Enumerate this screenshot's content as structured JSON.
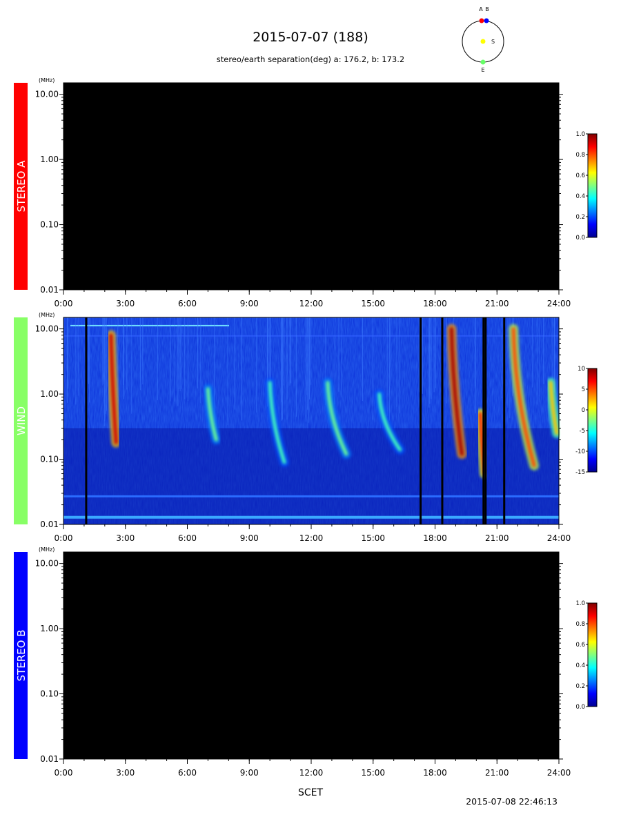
{
  "header": {
    "title": "2015-07-07 (188)",
    "subtitle": "stereo/earth separation(deg) a: 176.2, b: 173.2",
    "orbit_labels": {
      "a": "A",
      "b": "B",
      "s": "S",
      "e": "E"
    },
    "orbit_colors": {
      "a": "#ff0000",
      "b": "#0000ff",
      "s": "#ffff00",
      "e": "#66ff66"
    }
  },
  "footer": {
    "xlabel": "SCET",
    "timestamp": "2015-07-08 22:46:13"
  },
  "chart_data": [
    {
      "type": "heatmap",
      "name": "STEREO A",
      "label_color": "#ff0000",
      "has_data": false,
      "y_unit": "(MHz)",
      "y_scale": "log",
      "ylim": [
        0.01,
        15
      ],
      "yticks": [
        0.01,
        0.1,
        1.0,
        10.0
      ],
      "ytick_labels": [
        "0.01",
        "0.10",
        "1.00",
        "10.00"
      ],
      "xlim": [
        0,
        24
      ],
      "xtick_labels": [
        "0:00",
        "3:00",
        "6:00",
        "9:00",
        "12:00",
        "15:00",
        "18:00",
        "21:00",
        "24:00"
      ],
      "colorbar": {
        "min": 0.0,
        "max": 1.0,
        "tick_labels": [
          "0.0",
          "0.2",
          "0.4",
          "0.6",
          "0.8",
          "1.0"
        ]
      }
    },
    {
      "type": "heatmap",
      "name": "WIND",
      "label_color": "#88ff66",
      "has_data": true,
      "y_unit": "(MHz)",
      "y_scale": "log",
      "ylim": [
        0.01,
        15
      ],
      "yticks": [
        0.01,
        0.1,
        1.0,
        10.0
      ],
      "ytick_labels": [
        "0.01",
        "0.10",
        "1.00",
        "10.00"
      ],
      "xlim": [
        0,
        24
      ],
      "xtick_labels": [
        "0:00",
        "3:00",
        "6:00",
        "9:00",
        "12:00",
        "15:00",
        "18:00",
        "21:00",
        "24:00"
      ],
      "colorbar": {
        "min": -15,
        "max": 10,
        "tick_labels": [
          "-15",
          "-10",
          "-5",
          "0",
          "5",
          "10"
        ]
      },
      "radio_bursts": [
        {
          "t": 2.3,
          "f_top": 8,
          "f_bottom": 0.18,
          "drift": 0.25,
          "peak": 8
        },
        {
          "t": 7.0,
          "f_top": 1.2,
          "f_bottom": 0.2,
          "drift": 0.4,
          "peak": -3
        },
        {
          "t": 10.0,
          "f_top": 1.5,
          "f_bottom": 0.09,
          "drift": 0.7,
          "peak": -4
        },
        {
          "t": 12.8,
          "f_top": 1.5,
          "f_bottom": 0.12,
          "drift": 0.9,
          "peak": -3
        },
        {
          "t": 15.3,
          "f_top": 1.0,
          "f_bottom": 0.14,
          "drift": 1.0,
          "peak": -4
        },
        {
          "t": 18.8,
          "f_top": 10,
          "f_bottom": 0.12,
          "drift": 0.5,
          "peak": 9
        },
        {
          "t": 20.2,
          "f_top": 0.5,
          "f_bottom": 0.06,
          "drift": 0.2,
          "peak": 6
        },
        {
          "t": 21.8,
          "f_top": 10,
          "f_bottom": 0.08,
          "drift": 1.0,
          "peak": 5
        },
        {
          "t": 23.6,
          "f_top": 1.5,
          "f_bottom": 0.25,
          "drift": 0.3,
          "peak": 2
        }
      ],
      "data_gaps_hours": [
        1.05,
        17.25,
        18.3,
        20.3,
        20.4,
        21.3
      ]
    },
    {
      "type": "heatmap",
      "name": "STEREO B",
      "label_color": "#0000ff",
      "has_data": false,
      "y_unit": "(MHz)",
      "y_scale": "log",
      "ylim": [
        0.01,
        15
      ],
      "yticks": [
        0.01,
        0.1,
        1.0,
        10.0
      ],
      "ytick_labels": [
        "0.01",
        "0.10",
        "1.00",
        "10.00"
      ],
      "xlim": [
        0,
        24
      ],
      "xtick_labels": [
        "0:00",
        "3:00",
        "6:00",
        "9:00",
        "12:00",
        "15:00",
        "18:00",
        "21:00",
        "24:00"
      ],
      "colorbar": {
        "min": 0.0,
        "max": 1.0,
        "tick_labels": [
          "0.0",
          "0.2",
          "0.4",
          "0.6",
          "0.8",
          "1.0"
        ]
      }
    }
  ]
}
